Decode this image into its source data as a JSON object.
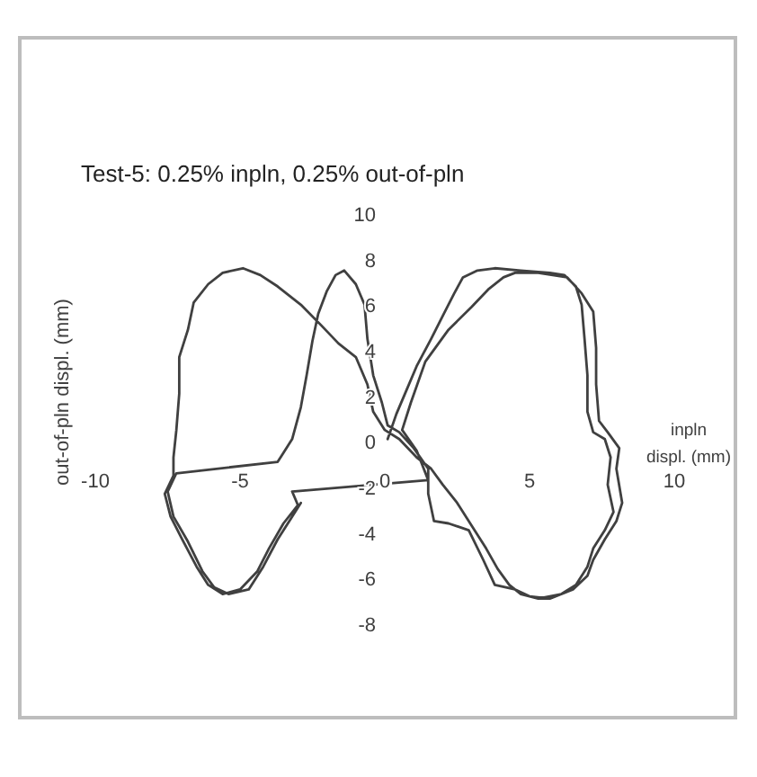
{
  "chart_data": {
    "type": "line",
    "title": "Test-5: 0.25% inpln, 0.25% out-of-pln",
    "xlabel": "inpln displ. (mm)",
    "ylabel": "out-of-pln displ. (mm)",
    "xlim": [
      -10,
      10
    ],
    "xticks": [
      -10,
      -5,
      0,
      5,
      10
    ],
    "ylim": [
      -8,
      10
    ],
    "yticks": [
      -8,
      -6,
      -4,
      -2,
      0,
      2,
      4,
      6,
      8,
      10
    ],
    "series": [
      {
        "color": "#404040",
        "x": [
          0.1,
          0.4,
          0.7,
          1.1,
          1.6,
          2.0,
          2.4,
          2.7,
          3.2,
          3.8,
          4.7,
          5.7,
          6.2,
          6.6,
          6.8,
          6.9,
          7.0,
          7.0,
          7.2,
          7.6,
          7.8,
          7.7,
          7.9,
          7.6,
          7.2,
          7.0,
          6.6,
          6.1,
          5.3,
          4.7,
          4.3,
          3.9,
          3.5,
          3.0,
          2.5,
          2.0,
          1.6,
          1.1,
          0.5,
          0.0,
          -0.4,
          -0.6,
          -1.0,
          -1.6,
          -2.2,
          -2.9,
          -3.7,
          -4.3,
          -4.9,
          -5.6,
          -6.1,
          -6.6,
          -6.8,
          -7.1,
          -7.1,
          -7.2,
          -7.3,
          -7.3,
          -7.6,
          -7.4,
          -7.0,
          -6.5,
          -6.1,
          -5.6,
          -5.0,
          -4.4,
          -4.0,
          -3.5,
          -3.0,
          -3.2,
          1.5,
          1.1,
          0.6,
          0.9,
          1.4,
          2.2,
          3.0,
          3.6,
          4.1,
          4.5,
          5.3,
          6.3,
          6.8,
          7.2,
          7.3,
          7.3,
          7.4,
          7.7,
          8.1,
          8.0,
          8.2,
          8.0,
          7.6,
          7.2,
          7.0,
          6.5,
          5.7,
          5.0,
          4.5,
          3.8,
          3.4,
          2.9,
          2.2,
          1.7,
          1.5,
          1.5,
          1.0,
          0.5,
          0.1,
          -0.1,
          -0.4,
          -0.6,
          -0.7,
          -1.0,
          -1.4,
          -1.7,
          -2.0,
          -2.3,
          -2.5,
          -2.7,
          -2.9,
          -3.2,
          -3.5,
          -3.7,
          -7.2,
          -7.5,
          -7.3,
          -6.8,
          -6.3,
          -5.9,
          -5.4,
          -4.7,
          -4.2,
          -3.7,
          -3.2,
          -2.9
        ],
        "values": [
          0.2,
          1.3,
          2.2,
          3.4,
          4.6,
          5.6,
          6.6,
          7.3,
          7.6,
          7.7,
          7.6,
          7.5,
          7.4,
          6.9,
          6.1,
          4.6,
          3.0,
          1.4,
          0.5,
          0.2,
          -0.6,
          -1.8,
          -3.0,
          -3.8,
          -4.6,
          -5.4,
          -6.2,
          -6.6,
          -6.8,
          -6.6,
          -6.2,
          -5.5,
          -4.6,
          -3.6,
          -2.6,
          -1.8,
          -1.1,
          -0.6,
          0.2,
          0.6,
          1.4,
          2.6,
          3.8,
          4.4,
          5.2,
          6.1,
          6.9,
          7.4,
          7.7,
          7.5,
          7.0,
          6.2,
          5.0,
          3.8,
          2.2,
          0.6,
          -0.6,
          -1.4,
          -2.2,
          -3.2,
          -4.2,
          -5.4,
          -6.2,
          -6.6,
          -6.4,
          -5.6,
          -4.6,
          -3.5,
          -2.7,
          -2.1,
          -1.6,
          -0.3,
          0.6,
          1.8,
          3.6,
          5.0,
          6.0,
          6.8,
          7.3,
          7.5,
          7.5,
          7.3,
          6.6,
          5.8,
          4.2,
          2.6,
          1.0,
          0.5,
          -0.2,
          -1.1,
          -2.6,
          -3.4,
          -4.2,
          -5.1,
          -5.8,
          -6.4,
          -6.8,
          -6.7,
          -6.4,
          -6.2,
          -5.1,
          -3.8,
          -3.5,
          -3.4,
          -2.2,
          -1.1,
          -0.2,
          0.5,
          0.8,
          1.8,
          3.0,
          4.6,
          6.1,
          7.0,
          7.6,
          7.4,
          6.7,
          5.7,
          4.5,
          3.0,
          1.6,
          0.2,
          -0.4,
          -0.8,
          -1.3,
          -2.1,
          -3.2,
          -4.3,
          -5.6,
          -6.3,
          -6.6,
          -6.4,
          -5.4,
          -4.2,
          -3.2,
          -2.6
        ]
      }
    ]
  }
}
